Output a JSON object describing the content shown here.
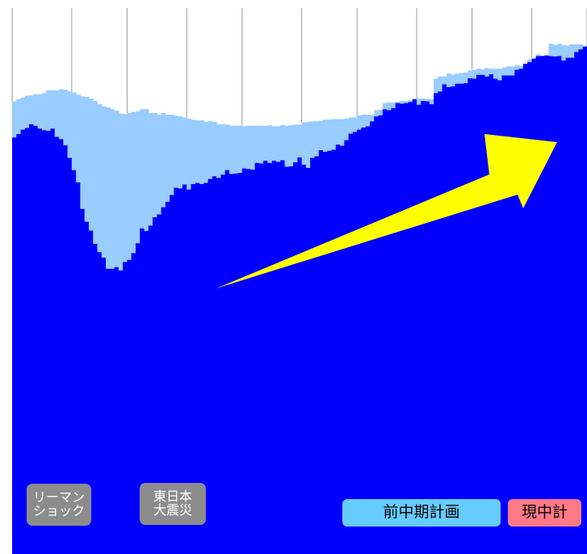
{
  "chart_data": {
    "type": "bar",
    "stacked": true,
    "title": "",
    "xlabel": "",
    "ylabel": "",
    "ylim": [
      0,
      100
    ],
    "grid": false,
    "legend": "bottom-right",
    "period_count": 10,
    "colors": {
      "actual": "#0000ff",
      "gap": "#99ccff",
      "divider": "#999999",
      "arrow": "#ffff00"
    },
    "series": [
      {
        "name": "actual",
        "values": [
          75.2,
          75.8,
          76.6,
          76.9,
          77.6,
          77.3,
          76.8,
          76.5,
          76.4,
          76.8,
          75.3,
          74.9,
          73.8,
          71.5,
          69.3,
          67.1,
          62.3,
          60.0,
          58.4,
          56.0,
          54.5,
          53.5,
          51.5,
          51.5,
          51.8,
          51.2,
          52.7,
          53.1,
          54.3,
          56.1,
          58.8,
          58.3,
          59.3,
          60.8,
          61.3,
          62.6,
          63.6,
          64.8,
          66.1,
          66.0,
          66.7,
          65.8,
          66.8,
          67.0,
          66.8,
          67.0,
          67.7,
          68.2,
          67.9,
          68.5,
          69.3,
          68.6,
          68.7,
          68.8,
          69.6,
          69.5,
          69.4,
          70.6,
          70.5,
          71.0,
          70.6,
          71.0,
          70.8,
          71.1,
          69.9,
          70.0,
          70.7,
          71.6,
          70.3,
          69.7,
          71.5,
          71.8,
          72.9,
          72.6,
          72.8,
          73.0,
          73.9,
          73.7,
          74.7,
          75.9,
          76.2,
          76.6,
          77.0,
          77.2,
          78.1,
          79.0,
          79.2,
          80.3,
          80.1,
          80.5,
          81.4,
          81.3,
          81.4,
          81.6,
          82.1,
          81.1,
          81.8,
          81.7,
          81.2,
          83.2,
          83.5,
          84.8,
          84.3,
          84.4,
          84.9,
          84.9,
          85.0,
          85.9,
          85.8,
          86.5,
          86.5,
          86.2,
          86.6,
          85.8,
          85.5,
          86.4,
          86.4,
          86.4,
          87.4,
          87.6,
          88.5,
          88.8,
          89.4,
          89.9,
          89.9,
          90.0,
          89.9,
          89.8,
          89.9,
          89.1,
          89.6,
          89.6,
          90.6,
          91.1,
          91.6
        ]
      },
      {
        "name": "gap",
        "values": [
          6.5,
          6.3,
          5.8,
          5.8,
          5.2,
          5.7,
          6.2,
          6.7,
          7.3,
          6.9,
          8.4,
          9.0,
          10.0,
          12.0,
          14.0,
          15.8,
          20.3,
          22.5,
          23.8,
          25.8,
          26.7,
          27.3,
          29.1,
          28.8,
          28.2,
          28.3,
          26.7,
          26.5,
          25.5,
          23.8,
          21.5,
          22.0,
          20.3,
          18.8,
          18.0,
          17.0,
          15.7,
          14.5,
          13.0,
          13.0,
          12.1,
          12.8,
          11.6,
          11.3,
          11.5,
          11.0,
          10.4,
          9.8,
          9.7,
          9.1,
          8.2,
          8.7,
          8.6,
          8.5,
          7.6,
          7.8,
          7.9,
          6.7,
          6.8,
          6.3,
          6.8,
          6.2,
          6.4,
          6.3,
          7.4,
          7.4,
          6.8,
          5.9,
          7.6,
          8.3,
          6.6,
          6.3,
          5.3,
          5.8,
          5.6,
          5.5,
          4.6,
          4.8,
          3.9,
          2.9,
          2.6,
          2.6,
          2.3,
          2.1,
          1.2,
          1.1,
          1.0,
          1.1,
          1.4,
          1.0,
          0.2,
          0.5,
          0.4,
          0.3,
          0.0,
          1.1,
          0.4,
          0.4,
          0.9,
          2.6,
          2.7,
          1.4,
          2.4,
          2.1,
          1.8,
          1.9,
          1.9,
          1.4,
          1.6,
          1.1,
          1.0,
          1.5,
          1.0,
          1.8,
          2.1,
          1.4,
          1.6,
          1.6,
          0.8,
          0.5,
          0.0,
          0.5,
          0.2,
          0.3,
          0.0,
          0.0,
          2.2,
          2.1,
          2.2,
          2.7,
          2.2,
          2.4,
          1.4,
          0.9,
          0.0
        ]
      }
    ],
    "annotations": [
      {
        "text": "リーマン\nショック"
      },
      {
        "text": "東日本\n大震災"
      }
    ],
    "legend_entries": [
      {
        "label": "前中期計画",
        "color": "#66ccff"
      },
      {
        "label": "現中計",
        "color": "#ff7a86"
      }
    ]
  }
}
